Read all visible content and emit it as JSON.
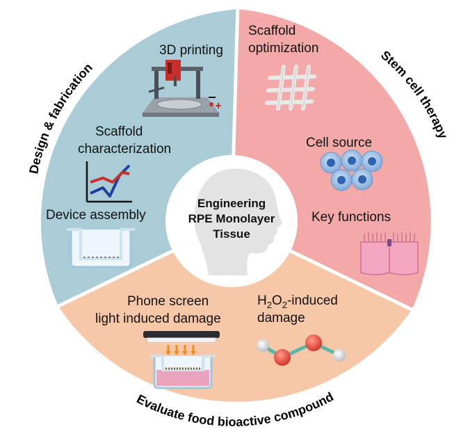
{
  "center": {
    "line1": "Engineering",
    "line2": "RPE Monolayer",
    "line3": "Tissue"
  },
  "sectors": {
    "design": {
      "title": "Design & fabrication",
      "color": "#a9ccd6",
      "items": {
        "printing": "3D printing",
        "characterization_1": "Scaffold",
        "characterization_2": "characterization",
        "device": "Device assembly"
      }
    },
    "stem": {
      "title": "Stem cell therapy",
      "color": "#f4a9a9",
      "items": {
        "optimization_1": "Scaffold",
        "optimization_2": "optimization",
        "cell_source": "Cell source",
        "key_functions": "Key functions"
      }
    },
    "evaluate": {
      "title": "Evaluate food bioactive compound",
      "color": "#f6c8a8",
      "items": {
        "phone_1": "Phone screen",
        "phone_2": "light induced damage",
        "h2o2_h": "H",
        "h2o2_sub1": "2",
        "h2o2_o": "O",
        "h2o2_sub2": "2",
        "h2o2_rest": "-induced",
        "h2o2_line2": "damage"
      }
    }
  },
  "icons": [
    "3d-printer-icon",
    "line-graph-icon",
    "transwell-insert-icon",
    "scaffold-mesh-icon",
    "stem-cells-icon",
    "rpe-cells-icon",
    "phone-screen-icon",
    "molecule-icon",
    "head-silhouette-icon"
  ]
}
